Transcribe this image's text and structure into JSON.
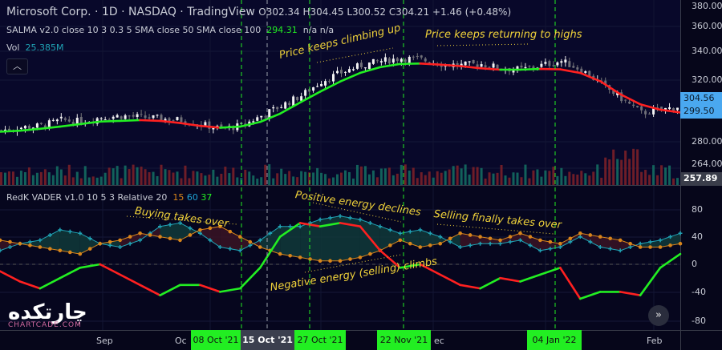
{
  "header": {
    "symbol": "Microsoft Corp.",
    "interval": "1D",
    "exchange": "NASDAQ",
    "source": "TradingView",
    "ohlc": "O302.34 H304.45 L300.52 C304.21 +1.46 (+0.48%)"
  },
  "indicators": {
    "salma": {
      "label": "SALMA v2.0 close 10 3 0.3 5 SMA close 50 SMA close 100",
      "value": "294.31",
      "na1": "n/a",
      "na2": "n/a"
    },
    "vol": {
      "label": "Vol",
      "value": "25.385M"
    },
    "vader": {
      "label": "RedK VADER v1.0 10 5 3 Relative 20",
      "v1": "15",
      "v2": "60",
      "v3": "37"
    }
  },
  "collapse_icon": "chevron-up-icon",
  "price_axis": [
    "380.00",
    "360.00",
    "340.00",
    "320.00",
    "280.00",
    "264.00"
  ],
  "price_tags": {
    "last": "304.56",
    "salma": "299.50",
    "vol": "257.89"
  },
  "vader_axis": [
    "80",
    "40",
    "0",
    "-40",
    "-80"
  ],
  "time_axis": {
    "labels": [
      "Sep",
      "Oc",
      "ec",
      "Feb"
    ],
    "highlighted": [
      "08 Oct '21",
      "15 Oct '21",
      "27 Oct '21",
      "22 Nov '21",
      "04 Jan '22"
    ]
  },
  "annotations": [
    "Price keeps climbing up",
    "Price keeps returning to highs",
    "Buying takes over",
    "Positive energy declines",
    "Selling finally takes over",
    "Negative energy (selling) climbs"
  ],
  "logo": {
    "text": "چارتکده",
    "sub": "CHARTCADE.COM"
  },
  "colors": {
    "up": "#22ee22",
    "down": "#ff2020",
    "positive": "#1fa3b5",
    "negative": "#d9851a",
    "marker": "#22ee22",
    "crosshair": "#9aa0aa",
    "tag": "#4aa8f0"
  },
  "chart_data": {
    "type": "line",
    "price": {
      "ylim": [
        256,
        384
      ],
      "close": [
        288,
        290,
        291,
        295,
        294,
        297,
        298,
        297,
        296,
        295,
        292,
        289,
        291,
        298,
        305,
        312,
        322,
        328,
        333,
        336,
        338,
        337,
        334,
        333,
        334,
        331,
        330,
        333,
        336,
        330,
        320,
        310,
        300,
        302,
        305
      ]
    },
    "vader": {
      "ylim": [
        -95,
        110
      ],
      "net": [
        -10,
        -25,
        -35,
        -20,
        -5,
        0,
        -15,
        -30,
        -45,
        -30,
        -30,
        -40,
        -35,
        -5,
        40,
        60,
        55,
        60,
        55,
        20,
        -5,
        0,
        -15,
        -30,
        -35,
        -20,
        -25,
        -15,
        -5,
        -50,
        -40,
        -40,
        -45,
        -5,
        15
      ],
      "positive": [
        20,
        30,
        35,
        50,
        45,
        30,
        25,
        35,
        55,
        60,
        45,
        25,
        20,
        35,
        55,
        55,
        65,
        70,
        65,
        55,
        45,
        50,
        40,
        25,
        30,
        30,
        35,
        20,
        25,
        40,
        25,
        20,
        30,
        35,
        45
      ],
      "negative": [
        35,
        30,
        25,
        20,
        15,
        30,
        35,
        45,
        40,
        35,
        50,
        55,
        40,
        25,
        15,
        10,
        5,
        5,
        10,
        20,
        35,
        25,
        30,
        45,
        40,
        35,
        45,
        35,
        30,
        45,
        40,
        35,
        25,
        25,
        30
      ]
    }
  }
}
